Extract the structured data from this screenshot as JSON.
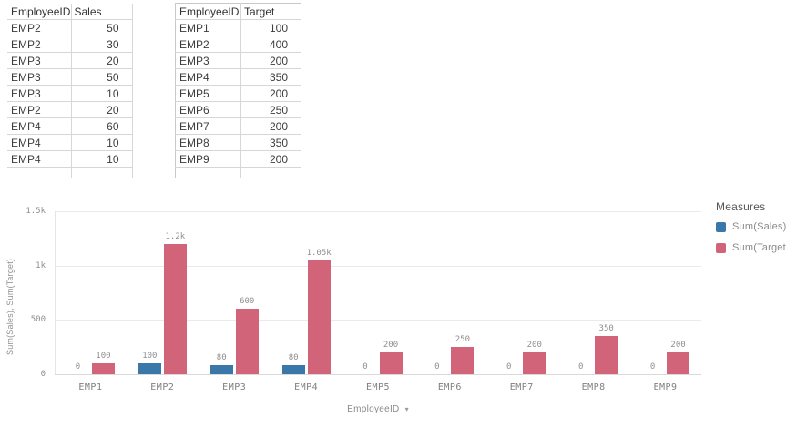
{
  "tables": [
    {
      "name": "sales",
      "headers": [
        "EmployeeID",
        "Sales"
      ],
      "rows": [
        [
          "EMP2",
          "50"
        ],
        [
          "EMP2",
          "30"
        ],
        [
          "EMP3",
          "20"
        ],
        [
          "EMP3",
          "50"
        ],
        [
          "EMP3",
          "10"
        ],
        [
          "EMP2",
          "20"
        ],
        [
          "EMP4",
          "60"
        ],
        [
          "EMP4",
          "10"
        ],
        [
          "EMP4",
          "10"
        ]
      ]
    },
    {
      "name": "target",
      "headers": [
        "EmployeeID",
        "Target"
      ],
      "rows": [
        [
          "EMP1",
          "100"
        ],
        [
          "EMP2",
          "400"
        ],
        [
          "EMP3",
          "200"
        ],
        [
          "EMP4",
          "350"
        ],
        [
          "EMP5",
          "200"
        ],
        [
          "EMP6",
          "250"
        ],
        [
          "EMP7",
          "200"
        ],
        [
          "EMP8",
          "350"
        ],
        [
          "EMP9",
          "200"
        ]
      ]
    }
  ],
  "chart_data": {
    "type": "bar",
    "title": "",
    "categories": [
      "EMP1",
      "EMP2",
      "EMP3",
      "EMP4",
      "EMP5",
      "EMP6",
      "EMP7",
      "EMP8",
      "EMP9"
    ],
    "series": [
      {
        "name": "Sum(Sales)",
        "color": "#3a78aa",
        "values": [
          0,
          100,
          80,
          80,
          0,
          0,
          0,
          0,
          0
        ],
        "labels": [
          "0",
          "100",
          "80",
          "80",
          "0",
          "0",
          "0",
          "0",
          "0"
        ]
      },
      {
        "name": "Sum(Target)",
        "color": "#d2647a",
        "values": [
          100,
          1200,
          600,
          1050,
          200,
          250,
          200,
          350,
          200
        ],
        "labels": [
          "100",
          "1.2k",
          "600",
          "1.05k",
          "200",
          "250",
          "200",
          "350",
          "200"
        ]
      }
    ],
    "xlabel": "EmployeeID",
    "ylabel": "Sum(Sales), Sum(Target)",
    "ylim": [
      0,
      1500
    ],
    "yticks": [
      {
        "value": 0,
        "label": "0"
      },
      {
        "value": 500,
        "label": "500"
      },
      {
        "value": 1000,
        "label": "1k"
      },
      {
        "value": 1500,
        "label": "1.5k"
      }
    ],
    "grid": true,
    "legend_position": "right",
    "legend_title": "Measures"
  },
  "icons": {
    "dropdown_caret": "▾"
  }
}
